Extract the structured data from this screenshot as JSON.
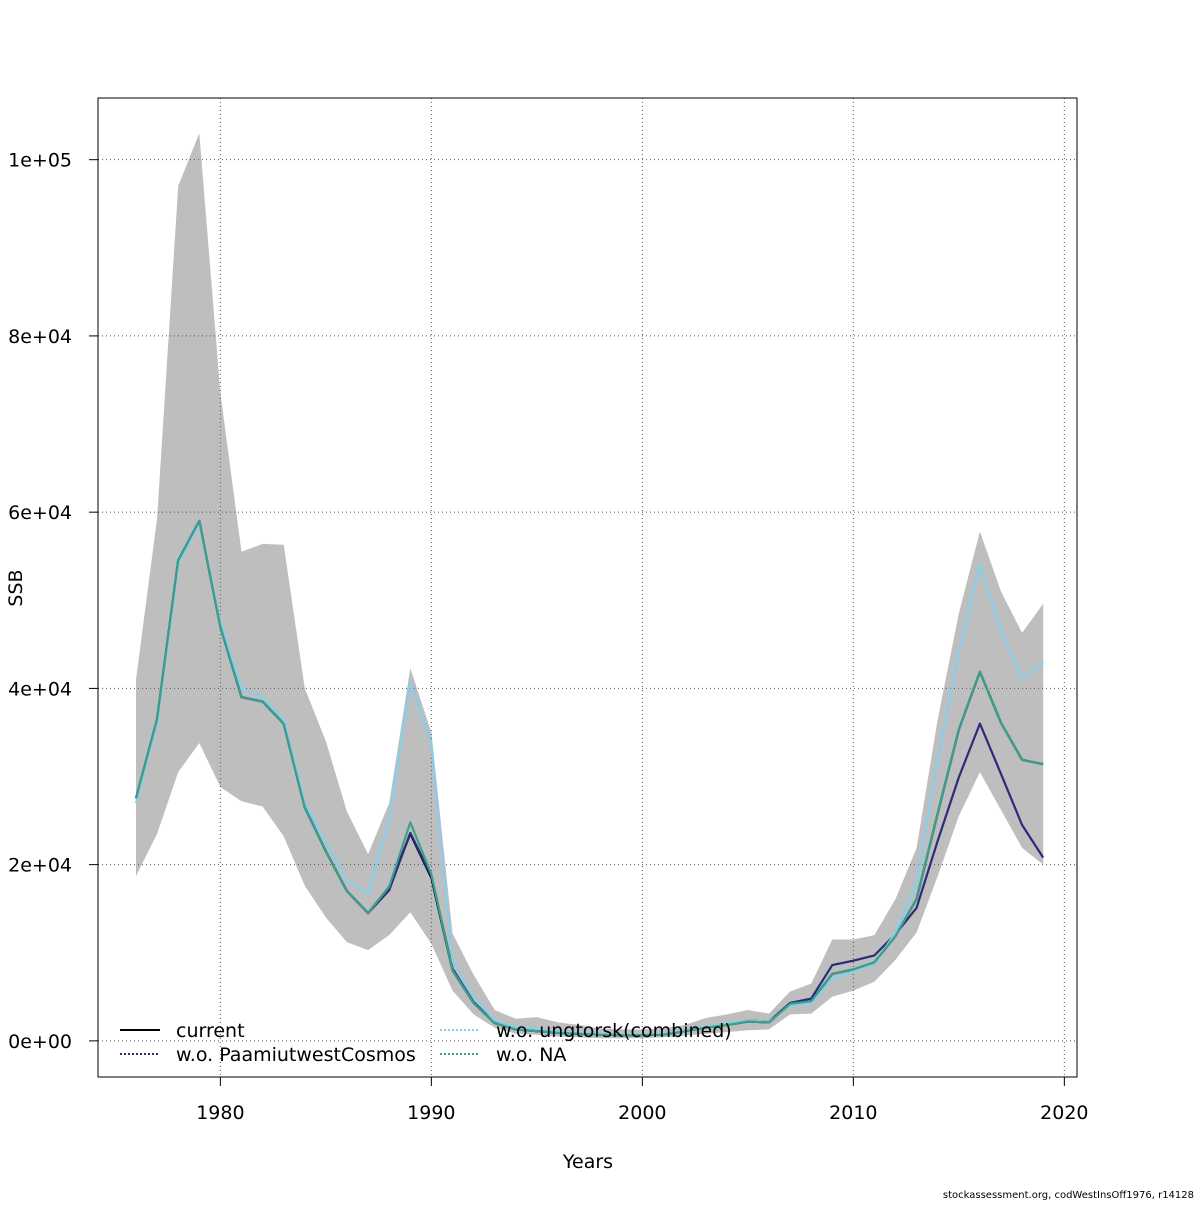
{
  "chart_data": {
    "type": "line",
    "xlabel": "Years",
    "ylabel": "SSB",
    "xlim": [
      1974.2,
      2020.6
    ],
    "ylim": [
      -4100,
      107000
    ],
    "x_ticks": [
      1980,
      1990,
      2000,
      2010,
      2020
    ],
    "x_tick_labels": [
      "1980",
      "1990",
      "2000",
      "2010",
      "2020"
    ],
    "y_ticks": [
      0,
      20000,
      40000,
      60000,
      80000,
      100000
    ],
    "y_tick_labels": [
      "0e+00",
      "2e+04",
      "4e+04",
      "6e+04",
      "8e+04",
      "1e+05"
    ],
    "grid": true,
    "legend_position": "bottom-left",
    "x": [
      1976,
      1977,
      1978,
      1979,
      1980,
      1981,
      1982,
      1983,
      1984,
      1985,
      1986,
      1987,
      1988,
      1989,
      1990,
      1991,
      1992,
      1993,
      1994,
      1995,
      1996,
      1997,
      1998,
      1999,
      2000,
      2001,
      2002,
      2003,
      2004,
      2005,
      2006,
      2007,
      2008,
      2009,
      2010,
      2011,
      2012,
      2013,
      2014,
      2015,
      2016,
      2017,
      2018,
      2019
    ],
    "confidence_band": {
      "color": "#bebebe",
      "lower": [
        18700,
        23500,
        30500,
        33800,
        28800,
        27200,
        26600,
        23200,
        17600,
        14000,
        11200,
        10300,
        12000,
        14600,
        11000,
        5700,
        3000,
        1500,
        800,
        700,
        500,
        400,
        300,
        300,
        300,
        400,
        600,
        800,
        1000,
        1200,
        1300,
        3000,
        3100,
        5000,
        5700,
        6700,
        9200,
        12300,
        18700,
        25500,
        30500,
        26200,
        21900,
        20000
      ],
      "upper": [
        41000,
        59300,
        97000,
        103000,
        73500,
        55500,
        56400,
        56300,
        40000,
        34000,
        26000,
        21200,
        27000,
        42300,
        35000,
        12200,
        7500,
        3500,
        2500,
        2700,
        2100,
        1800,
        1400,
        1300,
        1300,
        1400,
        1800,
        2600,
        3000,
        3500,
        3100,
        5600,
        6500,
        11500,
        11500,
        12000,
        16100,
        21900,
        36500,
        48500,
        57800,
        51000,
        46300,
        49600
      ]
    },
    "series": [
      {
        "name": "current",
        "color": "#000000",
        "style": "solid",
        "values": [
          27500,
          36500,
          54500,
          59000,
          47000,
          39000,
          38500,
          36000,
          26500,
          21500,
          17000,
          14500,
          17500,
          23500,
          18500,
          8000,
          4300,
          2000,
          1300,
          1100,
          900,
          800,
          700,
          650,
          650,
          700,
          1100,
          1500,
          1800,
          2200,
          2100,
          4200,
          4500,
          7600,
          8100,
          8900,
          11900,
          16100,
          25800,
          35300,
          41900,
          36100,
          31900,
          31400
        ]
      },
      {
        "name": "w.o. PaamiutwestCosmos",
        "color": "#2e2a7a",
        "style": "solid",
        "values": [
          27500,
          36500,
          54500,
          59000,
          47000,
          39000,
          38500,
          36000,
          26500,
          21500,
          17000,
          14500,
          17100,
          23600,
          18700,
          8200,
          4400,
          2100,
          1300,
          1100,
          900,
          800,
          700,
          650,
          650,
          700,
          1100,
          1500,
          1900,
          2300,
          2200,
          4300,
          4800,
          8600,
          9100,
          9700,
          12100,
          15100,
          22700,
          29900,
          36000,
          30300,
          24500,
          20800
        ]
      },
      {
        "name": "w.o. ungtorsk(combined)",
        "color": "#87ceeb",
        "style": "solid",
        "values": [
          27000,
          36000,
          54000,
          58800,
          47500,
          40000,
          39000,
          36500,
          27000,
          22500,
          18200,
          16700,
          25100,
          40600,
          33700,
          9100,
          4900,
          2300,
          1500,
          1400,
          1100,
          900,
          800,
          700,
          700,
          800,
          1200,
          1600,
          2000,
          2300,
          2200,
          4000,
          4300,
          7000,
          7900,
          8700,
          12300,
          18000,
          31800,
          44100,
          54100,
          46500,
          41000,
          43000
        ]
      },
      {
        "name": "w.o. NA",
        "color": "#3aa08e",
        "style": "solid",
        "values": [
          27500,
          36500,
          54500,
          59000,
          47000,
          39000,
          38500,
          36000,
          26500,
          21500,
          17000,
          14500,
          17500,
          24800,
          18900,
          8000,
          4300,
          2000,
          1300,
          1100,
          900,
          800,
          700,
          650,
          650,
          700,
          1100,
          1500,
          1800,
          2200,
          2100,
          4200,
          4500,
          7600,
          8100,
          8900,
          11900,
          16100,
          25800,
          35300,
          41900,
          36100,
          31900,
          31400
        ]
      }
    ],
    "legend": [
      {
        "label": "current",
        "color": "#000000",
        "style": "solid"
      },
      {
        "label": "w.o. PaamiutwestCosmos",
        "color": "#2e2a7a",
        "style": "dotted"
      },
      {
        "label": "w.o. ungtorsk(combined)",
        "color": "#87ceeb",
        "style": "dotted"
      },
      {
        "label": "w.o. NA",
        "color": "#3aa08e",
        "style": "dotted"
      }
    ]
  },
  "credit": "stockassessment.org, codWestInsOff1976, r14128"
}
